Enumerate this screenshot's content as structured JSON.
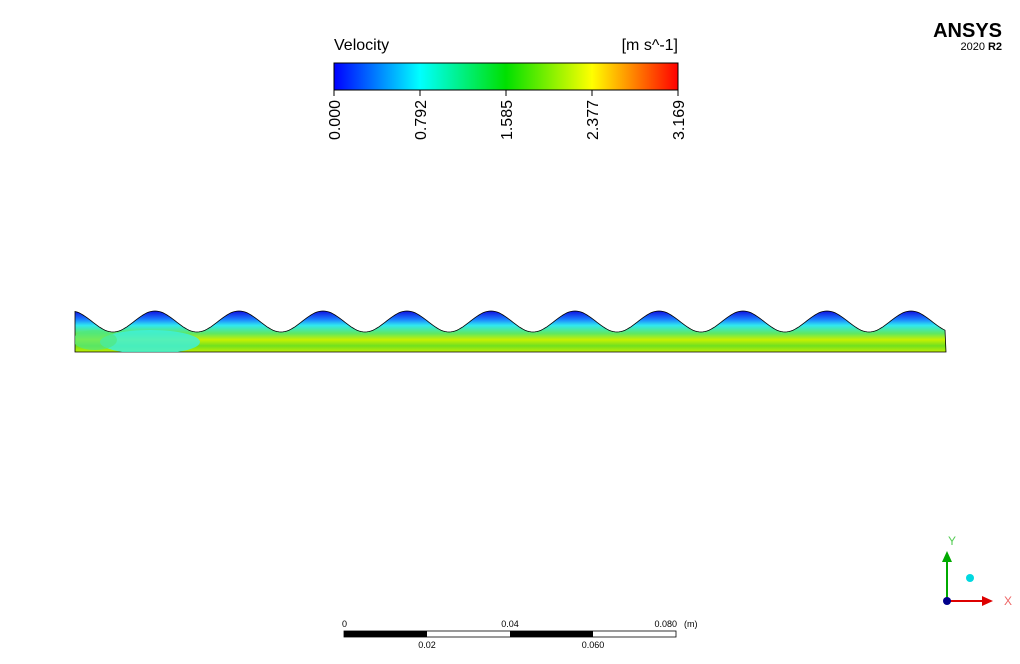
{
  "legend": {
    "title": "Velocity",
    "unit": "[m s^-1]",
    "ticks": [
      "0.000",
      "0.792",
      "1.585",
      "2.377",
      "3.169"
    ]
  },
  "logo": {
    "brand": "ANSYS",
    "version": "2020",
    "release": "R2"
  },
  "scale_bar": {
    "top_labels": [
      "0",
      "0.04",
      "0.080"
    ],
    "unit": "(m)",
    "bottom_labels": [
      "0.02",
      "0.060"
    ]
  },
  "axes": {
    "y": "Y",
    "x": "X"
  }
}
